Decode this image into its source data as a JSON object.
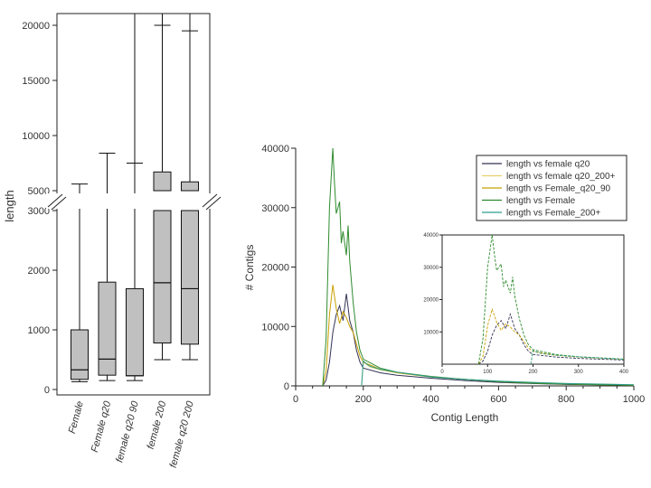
{
  "chart_data": [
    {
      "type": "boxplot",
      "ylabel": "length",
      "y_axis_break": [
        3000,
        5000
      ],
      "lower_ticks": [
        "0",
        "1000",
        "2000",
        "3000"
      ],
      "upper_ticks": [
        "5000",
        "10000",
        "15000",
        "20000"
      ],
      "categories": [
        "Female",
        "Female q20",
        "female q20 90",
        "female 200",
        "female q20 200"
      ],
      "boxes": [
        {
          "q1": 170,
          "median": 330,
          "q3": 1000,
          "whisker_low": 130,
          "whisker_high": 5600
        },
        {
          "q1": 240,
          "median": 510,
          "q3": 1800,
          "whisker_low": 150,
          "whisker_high": 8400
        },
        {
          "q1": 230,
          "median": 230,
          "q3": 1690,
          "whisker_low": 150,
          "whisker_high": 7500,
          "top_open": true
        },
        {
          "q1": 780,
          "median": 1790,
          "q3": 6700,
          "whisker_low": 500,
          "whisker_high": 20000,
          "top_open": true
        },
        {
          "q1": 760,
          "median": 1690,
          "q3": 5800,
          "whisker_low": 500,
          "whisker_high": 19500,
          "top_open": true
        }
      ],
      "box_fill": "#c0c0c0"
    },
    {
      "type": "line",
      "xlabel": "Contig Length",
      "ylabel": "# Contigs",
      "xlim": [
        0,
        1000
      ],
      "ylim": [
        0,
        40000
      ],
      "x_ticks": [
        "0",
        "200",
        "400",
        "600",
        "800",
        "1000"
      ],
      "y_ticks": [
        "0",
        "10000",
        "20000",
        "30000",
        "40000"
      ],
      "legend_position": "top-right",
      "series": [
        {
          "name": "length  vs female q20",
          "color": "#333355",
          "x": [
            80,
            90,
            100,
            110,
            120,
            130,
            140,
            150,
            160,
            170,
            180,
            190,
            200,
            250,
            300,
            400,
            500,
            600,
            700,
            800,
            900,
            1000
          ],
          "y": [
            0,
            1000,
            4000,
            9000,
            12000,
            13500,
            11000,
            15500,
            11000,
            9000,
            6000,
            4000,
            3000,
            2200,
            1800,
            1300,
            900,
            600,
            400,
            250,
            180,
            100
          ]
        },
        {
          "name": "length  vs female q20_200+",
          "color": "#e8cf6a",
          "x": [
            195,
            200,
            210,
            220,
            250,
            300,
            400,
            500,
            600,
            700,
            800,
            900,
            1000
          ],
          "y": [
            0,
            4000,
            3600,
            3200,
            2700,
            2200,
            1500,
            1100,
            800,
            600,
            400,
            300,
            200
          ]
        },
        {
          "name": "length  vs Female_q20_90",
          "color": "#c8a000",
          "x": [
            80,
            90,
            100,
            110,
            120,
            130,
            140,
            150,
            160,
            170,
            180,
            190,
            200,
            250,
            300,
            400,
            500,
            600,
            700,
            800,
            900,
            1000
          ],
          "y": [
            0,
            2500,
            12000,
            17000,
            13000,
            10500,
            12500,
            11500,
            10000,
            9000,
            7000,
            5000,
            4000,
            2800,
            2200,
            1500,
            1100,
            700,
            450,
            300,
            200,
            120
          ]
        },
        {
          "name": "length  vs Female",
          "color": "#2e8b2e",
          "x": [
            80,
            90,
            100,
            110,
            115,
            120,
            130,
            135,
            140,
            150,
            155,
            160,
            170,
            180,
            190,
            200,
            250,
            300,
            400,
            500,
            600,
            700,
            800,
            900,
            1000
          ],
          "y": [
            0,
            8000,
            30000,
            40000,
            34000,
            29000,
            31000,
            24000,
            26000,
            22000,
            27000,
            21000,
            14000,
            9000,
            6000,
            4500,
            3000,
            2300,
            1600,
            1100,
            700,
            450,
            300,
            200,
            120
          ]
        },
        {
          "name": "length  vs Female_200+",
          "color": "#2a9d8f",
          "x": [
            195,
            200,
            210,
            220,
            250,
            300,
            400,
            500,
            600,
            700,
            800,
            900,
            1000
          ],
          "y": [
            0,
            4200,
            3700,
            3300,
            2800,
            2300,
            1500,
            1100,
            800,
            600,
            400,
            300,
            200
          ]
        }
      ],
      "inset": {
        "xlim": [
          0,
          400
        ],
        "ylim": [
          0,
          40000
        ],
        "x_ticks": [
          "0",
          "100",
          "200",
          "300",
          "400"
        ],
        "y_ticks": [
          "10000",
          "20000",
          "30000",
          "40000"
        ]
      }
    }
  ]
}
